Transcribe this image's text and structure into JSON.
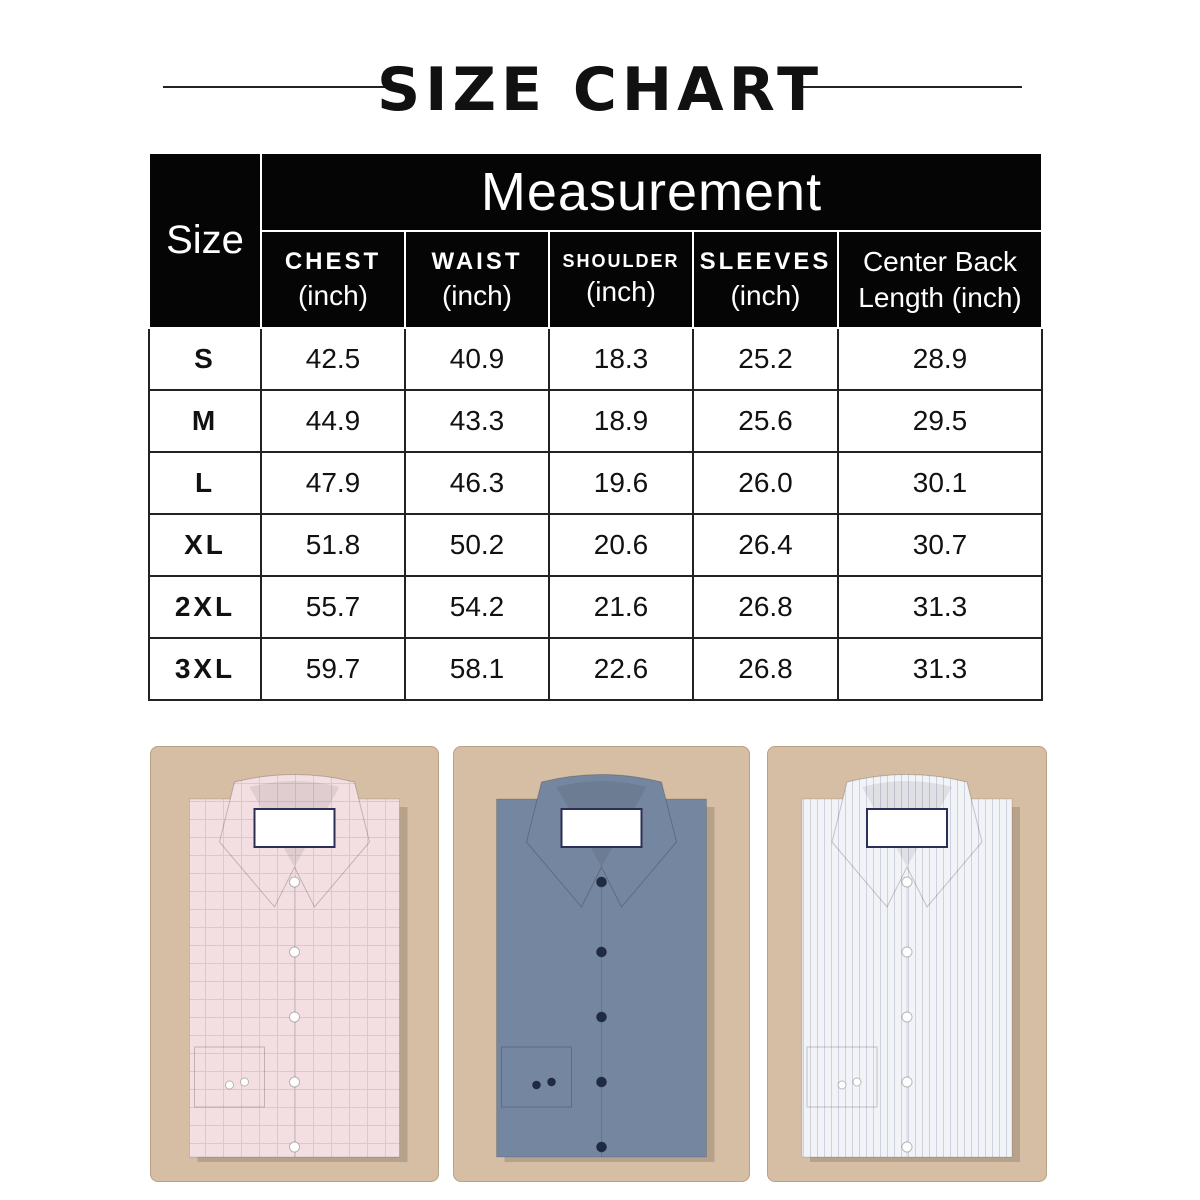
{
  "title": "SIZE CHART",
  "table": {
    "group_header": "Measurement",
    "size_header": "Size",
    "columns": [
      {
        "name": "CHEST",
        "unit": "(inch)"
      },
      {
        "name": "WAIST",
        "unit": "(inch)"
      },
      {
        "name": "SHOULDER",
        "unit": "(inch)"
      },
      {
        "name": "SLEEVES",
        "unit": "(inch)"
      },
      {
        "name": "Center Back",
        "unit": "Length (inch)"
      }
    ],
    "rows": [
      {
        "size": "S",
        "values": [
          "42.5",
          "40.9",
          "18.3",
          "25.2",
          "28.9"
        ]
      },
      {
        "size": "M",
        "values": [
          "44.9",
          "43.3",
          "18.9",
          "25.6",
          "29.5"
        ]
      },
      {
        "size": "L",
        "values": [
          "47.9",
          "46.3",
          "19.6",
          "26.0",
          "30.1"
        ]
      },
      {
        "size": "XL",
        "values": [
          "51.8",
          "50.2",
          "20.6",
          "26.4",
          "30.7"
        ]
      },
      {
        "size": "2XL",
        "values": [
          "55.7",
          "54.2",
          "21.6",
          "26.8",
          "31.3"
        ]
      },
      {
        "size": "3XL",
        "values": [
          "59.7",
          "58.1",
          "22.6",
          "26.8",
          "31.3"
        ]
      }
    ]
  },
  "shirts": [
    {
      "name": "pink-check-shirt",
      "color": "#f3dfe2",
      "button": "#ffffff",
      "pattern": "check"
    },
    {
      "name": "blue-shirt",
      "color": "#7587a0",
      "button": "#1f2a44",
      "pattern": "plain"
    },
    {
      "name": "white-stripe-shirt",
      "color": "#f2f3f7",
      "button": "#ffffff",
      "pattern": "stripe"
    }
  ],
  "colors": {
    "header_bg": "#050505",
    "card_bg": "#d6bea4"
  }
}
